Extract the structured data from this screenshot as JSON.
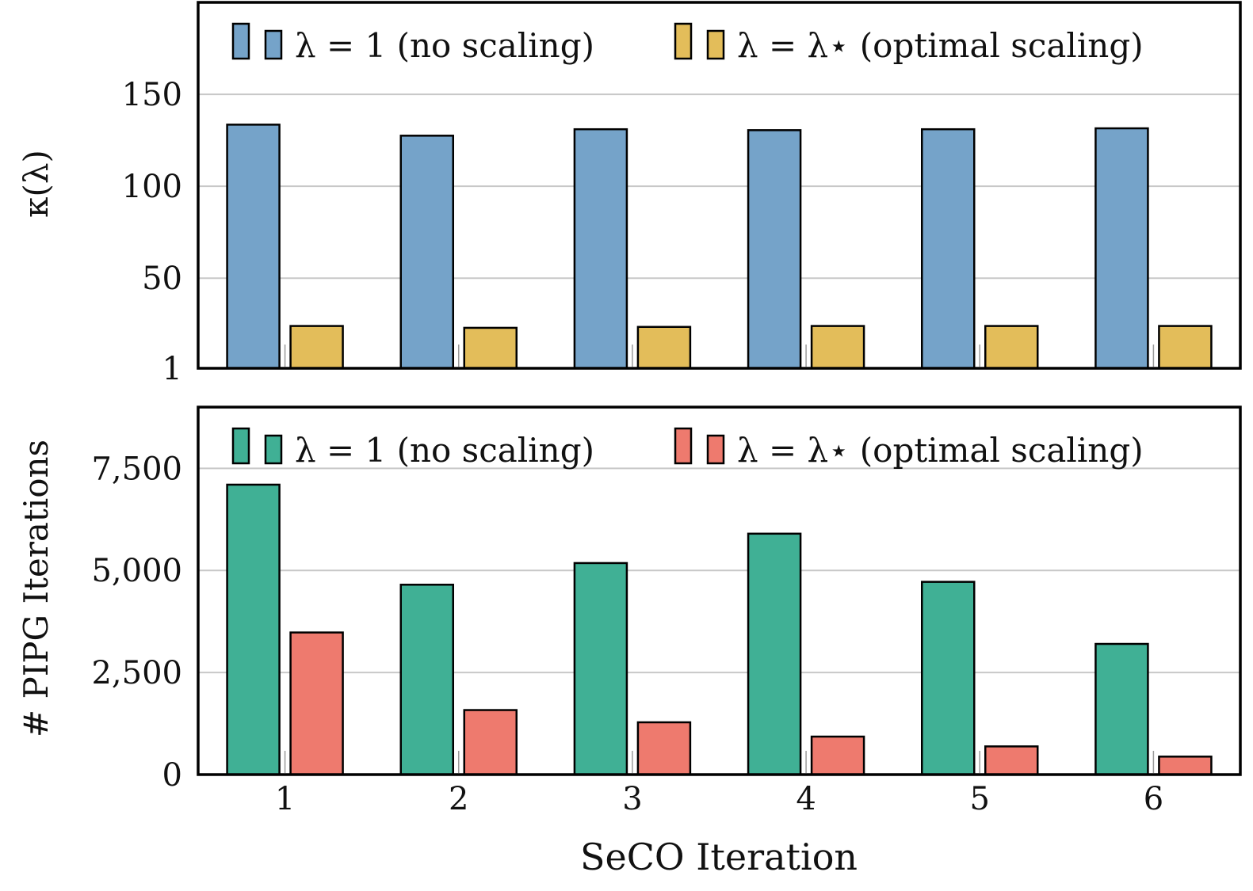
{
  "xlabel": "SeCO Iteration",
  "categories": [
    "1",
    "2",
    "3",
    "4",
    "5",
    "6"
  ],
  "colors": {
    "top_no_scaling": "#75a3c9",
    "top_optimal": "#e3bd5a",
    "bottom_no_scaling": "#40b095",
    "bottom_optimal": "#ee7a6e"
  },
  "chart_data": [
    {
      "type": "bar",
      "ylabel": "κ(λ)",
      "ylim": [
        1,
        200
      ],
      "yticks": [
        1,
        50,
        100,
        150
      ],
      "ytick_labels": [
        "1",
        "50",
        "100",
        "150"
      ],
      "grid": true,
      "legend_placement": "top",
      "categories": [
        "1",
        "2",
        "3",
        "4",
        "5",
        "6"
      ],
      "series": [
        {
          "name": "λ = 1 (no scaling)",
          "color": "#75a3c9",
          "values": [
            133.5,
            127.5,
            131,
            130.5,
            131,
            131.5
          ]
        },
        {
          "name": "λ = λ⋆ (optimal scaling)",
          "color": "#e3bd5a",
          "values": [
            24,
            23,
            23.5,
            24,
            24,
            24
          ]
        }
      ]
    },
    {
      "type": "bar",
      "ylabel": "# PIPG Iterations",
      "ylim": [
        0,
        9000
      ],
      "yticks": [
        0,
        2500,
        5000,
        7500
      ],
      "ytick_labels": [
        "0",
        "2,500",
        "5,000",
        "7,500"
      ],
      "grid": true,
      "legend_placement": "top",
      "categories": [
        "1",
        "2",
        "3",
        "4",
        "5",
        "6"
      ],
      "series": [
        {
          "name": "λ = 1 (no scaling)",
          "color": "#40b095",
          "values": [
            7100,
            4650,
            5180,
            5900,
            4720,
            3200
          ]
        },
        {
          "name": "λ = λ⋆ (optimal scaling)",
          "color": "#ee7a6e",
          "values": [
            3480,
            1580,
            1280,
            930,
            690,
            440
          ]
        }
      ]
    }
  ]
}
